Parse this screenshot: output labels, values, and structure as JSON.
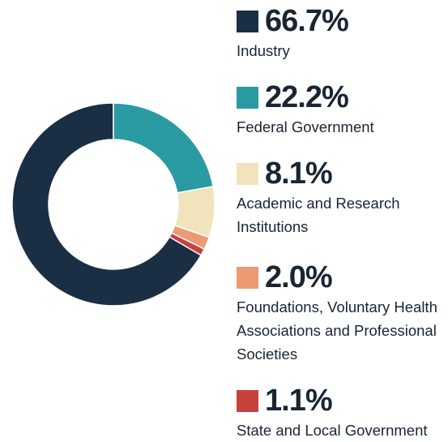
{
  "chart_data": {
    "type": "pie",
    "categories": [
      "Industry",
      "Federal Government",
      "Academic and Research Institutions",
      "Foundations, Voluntary Health Associations and Professional Societies",
      "State and Local Government"
    ],
    "values": [
      66.7,
      22.2,
      8.1,
      2.0,
      1.1
    ],
    "value_labels": [
      "66.7%",
      "22.2%",
      "8.1%",
      "2.0%",
      "1.1%"
    ],
    "colors": [
      "#1a2e44",
      "#2a9aa3",
      "#f1e4bc",
      "#ec9a74",
      "#c8413a"
    ]
  }
}
